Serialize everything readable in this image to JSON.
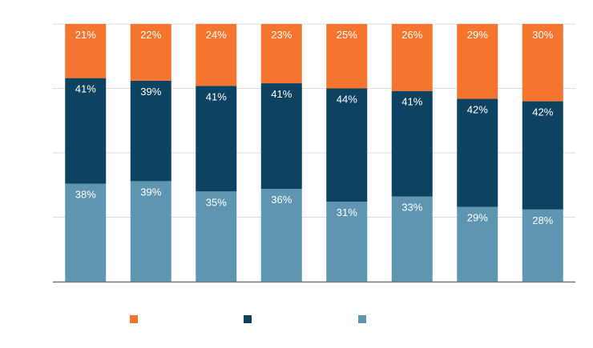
{
  "chart_data": {
    "type": "bar",
    "stacked": true,
    "normalized": true,
    "categories": [
      "",
      "",
      "",
      "",
      "",
      "",
      "",
      ""
    ],
    "title": "",
    "xlabel": "",
    "ylabel": "",
    "ylim": [
      0,
      100
    ],
    "grid": true,
    "legend": "bottom",
    "series": [
      {
        "name": "",
        "color": "#5e95b1",
        "values": [
          38,
          39,
          35,
          36,
          31,
          33,
          29,
          28
        ],
        "labels": [
          "38%",
          "39%",
          "35%",
          "36%",
          "31%",
          "33%",
          "29%",
          "28%"
        ]
      },
      {
        "name": "",
        "color": "#0d4361",
        "values": [
          41,
          39,
          41,
          41,
          44,
          41,
          42,
          42
        ],
        "labels": [
          "41%",
          "39%",
          "41%",
          "41%",
          "44%",
          "41%",
          "42%",
          "42%"
        ]
      },
      {
        "name": "",
        "color": "#f6752e",
        "values": [
          21,
          22,
          24,
          23,
          25,
          26,
          29,
          30
        ],
        "labels": [
          "21%",
          "22%",
          "24%",
          "23%",
          "25%",
          "26%",
          "29%",
          "30%"
        ]
      }
    ],
    "legend_order": [
      2,
      1,
      0
    ],
    "gridline_color": "#dddddd",
    "axis_color": "#777777",
    "label_color": "#ffffff"
  }
}
